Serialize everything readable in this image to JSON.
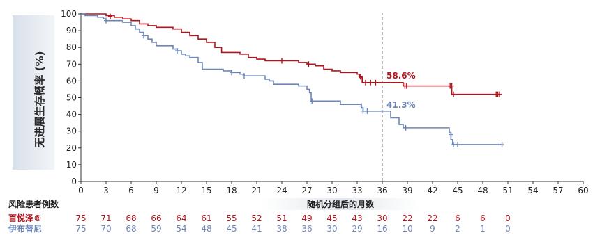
{
  "chart_data": {
    "type": "line",
    "ylabel": "无进展生存概率 (%)",
    "xlabel": "随机分组后的月数",
    "xlim": [
      0,
      60
    ],
    "ylim": [
      0,
      100
    ],
    "x_ticks": [
      0,
      3,
      6,
      9,
      12,
      15,
      18,
      21,
      24,
      27,
      30,
      33,
      36,
      39,
      42,
      45,
      48,
      51,
      54,
      57,
      60
    ],
    "y_ticks": [
      0,
      10,
      20,
      30,
      40,
      50,
      60,
      70,
      80,
      90,
      100
    ],
    "reference_line_x": 36,
    "series": [
      {
        "name": "百悦泽®",
        "color": "#b3141c",
        "steps": [
          [
            0,
            100
          ],
          [
            3,
            99
          ],
          [
            4,
            98
          ],
          [
            5,
            97
          ],
          [
            6,
            96
          ],
          [
            7,
            94
          ],
          [
            8,
            93
          ],
          [
            9,
            92
          ],
          [
            11,
            91
          ],
          [
            12,
            89
          ],
          [
            13,
            87
          ],
          [
            14,
            85
          ],
          [
            15,
            83
          ],
          [
            16,
            80
          ],
          [
            16.8,
            77
          ],
          [
            19,
            76
          ],
          [
            20,
            74
          ],
          [
            21,
            73
          ],
          [
            22,
            72
          ],
          [
            26,
            71
          ],
          [
            27,
            70
          ],
          [
            28,
            69
          ],
          [
            29,
            67
          ],
          [
            30,
            66
          ],
          [
            31,
            65
          ],
          [
            33,
            64
          ],
          [
            33.3,
            62
          ],
          [
            33.6,
            59
          ],
          [
            38.5,
            57
          ],
          [
            44,
            57
          ],
          [
            44.3,
            52
          ],
          [
            50,
            52
          ]
        ],
        "censored": [
          [
            3.5,
            98.5
          ],
          [
            24,
            72
          ],
          [
            27.2,
            70
          ],
          [
            33.4,
            62.5
          ],
          [
            34,
            59
          ],
          [
            34.6,
            59
          ],
          [
            35.2,
            59
          ],
          [
            38.7,
            57
          ],
          [
            38.9,
            57
          ],
          [
            44.1,
            57
          ],
          [
            44.3,
            57
          ],
          [
            44.5,
            52
          ],
          [
            49.6,
            52
          ],
          [
            49.8,
            52
          ],
          [
            50,
            52
          ]
        ],
        "annotation": {
          "x": 36,
          "text": "58.6%"
        }
      },
      {
        "name": "伊布替尼",
        "color": "#6e86b6",
        "steps": [
          [
            0,
            100
          ],
          [
            0.5,
            99
          ],
          [
            2,
            98
          ],
          [
            2.7,
            97
          ],
          [
            3,
            96
          ],
          [
            5,
            95
          ],
          [
            6,
            93
          ],
          [
            6.5,
            91
          ],
          [
            7,
            89
          ],
          [
            7.5,
            87
          ],
          [
            8,
            85
          ],
          [
            8.5,
            83
          ],
          [
            9,
            81
          ],
          [
            11,
            79
          ],
          [
            11.5,
            78
          ],
          [
            12,
            76
          ],
          [
            12.5,
            75
          ],
          [
            13,
            74
          ],
          [
            14,
            71
          ],
          [
            14.5,
            67
          ],
          [
            17,
            66
          ],
          [
            18,
            65
          ],
          [
            19,
            64
          ],
          [
            19.5,
            63
          ],
          [
            22,
            61
          ],
          [
            22.5,
            60
          ],
          [
            23,
            58
          ],
          [
            26,
            57
          ],
          [
            27,
            55
          ],
          [
            27.3,
            53
          ],
          [
            27.5,
            48
          ],
          [
            31,
            46
          ],
          [
            33.5,
            44
          ],
          [
            33.7,
            42
          ],
          [
            37,
            38
          ],
          [
            38,
            34
          ],
          [
            38.5,
            32
          ],
          [
            44,
            29
          ],
          [
            44.2,
            25
          ],
          [
            44.4,
            22
          ],
          [
            50.3,
            22
          ]
        ],
        "censored": [
          [
            3,
            96
          ],
          [
            7.5,
            87
          ],
          [
            11.5,
            78
          ],
          [
            18,
            65
          ],
          [
            19.5,
            63
          ],
          [
            27.6,
            48
          ],
          [
            33.5,
            45
          ],
          [
            33.7,
            42
          ],
          [
            34.2,
            42
          ],
          [
            38.8,
            32
          ],
          [
            44.2,
            28
          ],
          [
            44.5,
            22
          ],
          [
            45,
            22
          ],
          [
            50.3,
            22
          ]
        ],
        "annotation": {
          "x": 36,
          "text": "41.3%"
        }
      }
    ],
    "risk_table": {
      "title": "风险患者例数",
      "x": [
        0,
        3,
        6,
        9,
        12,
        15,
        18,
        21,
        24,
        27,
        30,
        33,
        36,
        39,
        42,
        45,
        48,
        51
      ],
      "rows": [
        {
          "label": "百悦泽®",
          "color": "#b3141c",
          "values": [
            75,
            71,
            68,
            66,
            64,
            61,
            55,
            52,
            51,
            49,
            45,
            43,
            30,
            22,
            22,
            6,
            6,
            0
          ]
        },
        {
          "label": "伊布替尼",
          "color": "#6e86b6",
          "values": [
            75,
            70,
            68,
            59,
            54,
            48,
            45,
            41,
            38,
            36,
            30,
            29,
            16,
            10,
            9,
            2,
            1,
            0
          ]
        }
      ]
    }
  }
}
